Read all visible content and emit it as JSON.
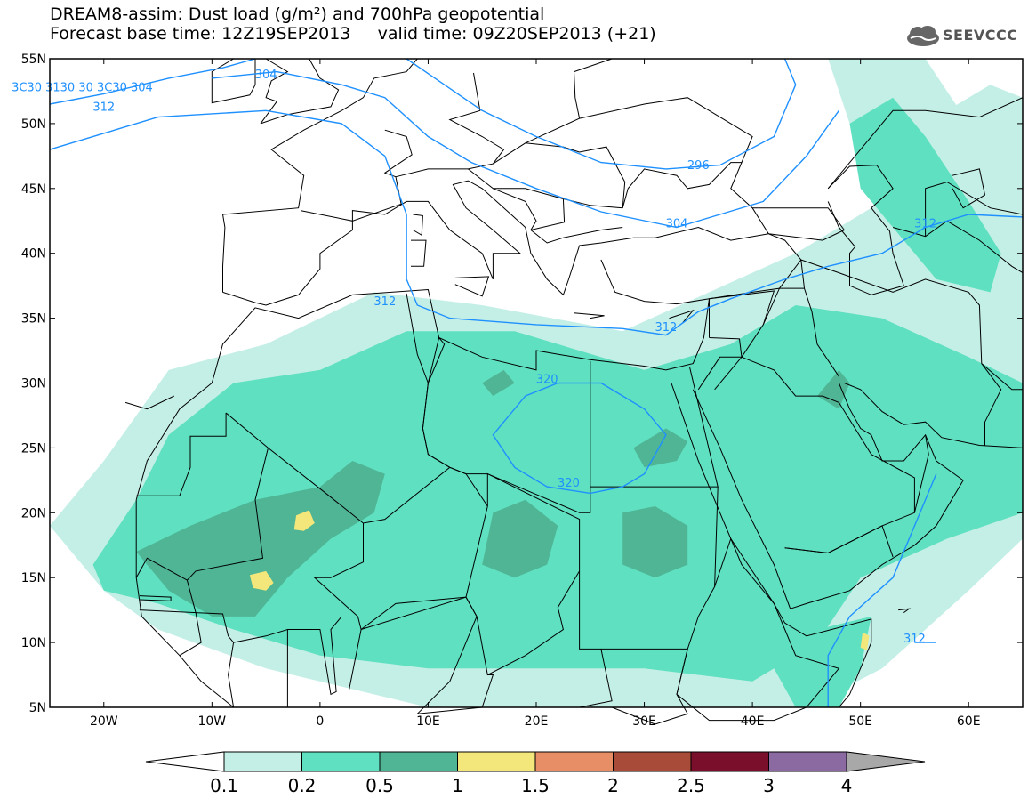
{
  "title": {
    "line1": "DREAM8-assim: Dust load (g/m²) and 700hPa geopotential",
    "line2": "Forecast base time: 12Z19SEP2013     valid time: 09Z20SEP2013 (+21)"
  },
  "logo": {
    "text": "SEEVCCC",
    "icon": "cloud-logo-icon"
  },
  "map": {
    "lon_range": [
      -25,
      65
    ],
    "lat_range": [
      5,
      55
    ],
    "lon_ticks": [
      {
        "v": -20,
        "label": "20W"
      },
      {
        "v": -10,
        "label": "10W"
      },
      {
        "v": 0,
        "label": "0"
      },
      {
        "v": 10,
        "label": "10E"
      },
      {
        "v": 20,
        "label": "20E"
      },
      {
        "v": 30,
        "label": "30E"
      },
      {
        "v": 40,
        "label": "40E"
      },
      {
        "v": 50,
        "label": "50E"
      },
      {
        "v": 60,
        "label": "60E"
      }
    ],
    "lat_ticks": [
      {
        "v": 5,
        "label": "5N"
      },
      {
        "v": 10,
        "label": "10N"
      },
      {
        "v": 15,
        "label": "15N"
      },
      {
        "v": 20,
        "label": "20N"
      },
      {
        "v": 25,
        "label": "25N"
      },
      {
        "v": 30,
        "label": "30N"
      },
      {
        "v": 35,
        "label": "35N"
      },
      {
        "v": 40,
        "label": "40N"
      },
      {
        "v": 45,
        "label": "45N"
      },
      {
        "v": 50,
        "label": "50N"
      },
      {
        "v": 55,
        "label": "55N"
      }
    ],
    "contour_labels": [
      {
        "text": "312",
        "lon": -20,
        "lat": 51
      },
      {
        "text": "312",
        "lon": 6,
        "lat": 36
      },
      {
        "text": "312",
        "lon": 32,
        "lat": 34
      },
      {
        "text": "304",
        "lon": 33,
        "lat": 42
      },
      {
        "text": "296",
        "lon": 35,
        "lat": 46.5
      },
      {
        "text": "312",
        "lon": 56,
        "lat": 42
      },
      {
        "text": "320",
        "lon": 21,
        "lat": 30
      },
      {
        "text": "320",
        "lon": 23,
        "lat": 22
      },
      {
        "text": "312",
        "lon": 55,
        "lat": 10
      },
      {
        "text": "3C30 3130 30 3C30 304",
        "lon": -22,
        "lat": 52.5
      },
      {
        "text": "304",
        "lon": -5,
        "lat": 53.5
      }
    ]
  },
  "colorbar": {
    "levels": [
      "0.1",
      "0.2",
      "0.5",
      "1",
      "1.5",
      "2",
      "2.5",
      "3",
      "4"
    ],
    "colors": [
      "#ffffff",
      "#c4efe6",
      "#5fe0c0",
      "#4fb595",
      "#f3e67a",
      "#e88e66",
      "#a84b38",
      "#7a0f2c",
      "#8a6aa0",
      "#a8a8a8"
    ]
  },
  "colors": {
    "land_border": "#000000",
    "contour": "#1e90ff",
    "dust_01": "#c4efe6",
    "dust_02": "#5fe0c0",
    "dust_05": "#4fb595",
    "dust_1": "#f3e67a"
  }
}
